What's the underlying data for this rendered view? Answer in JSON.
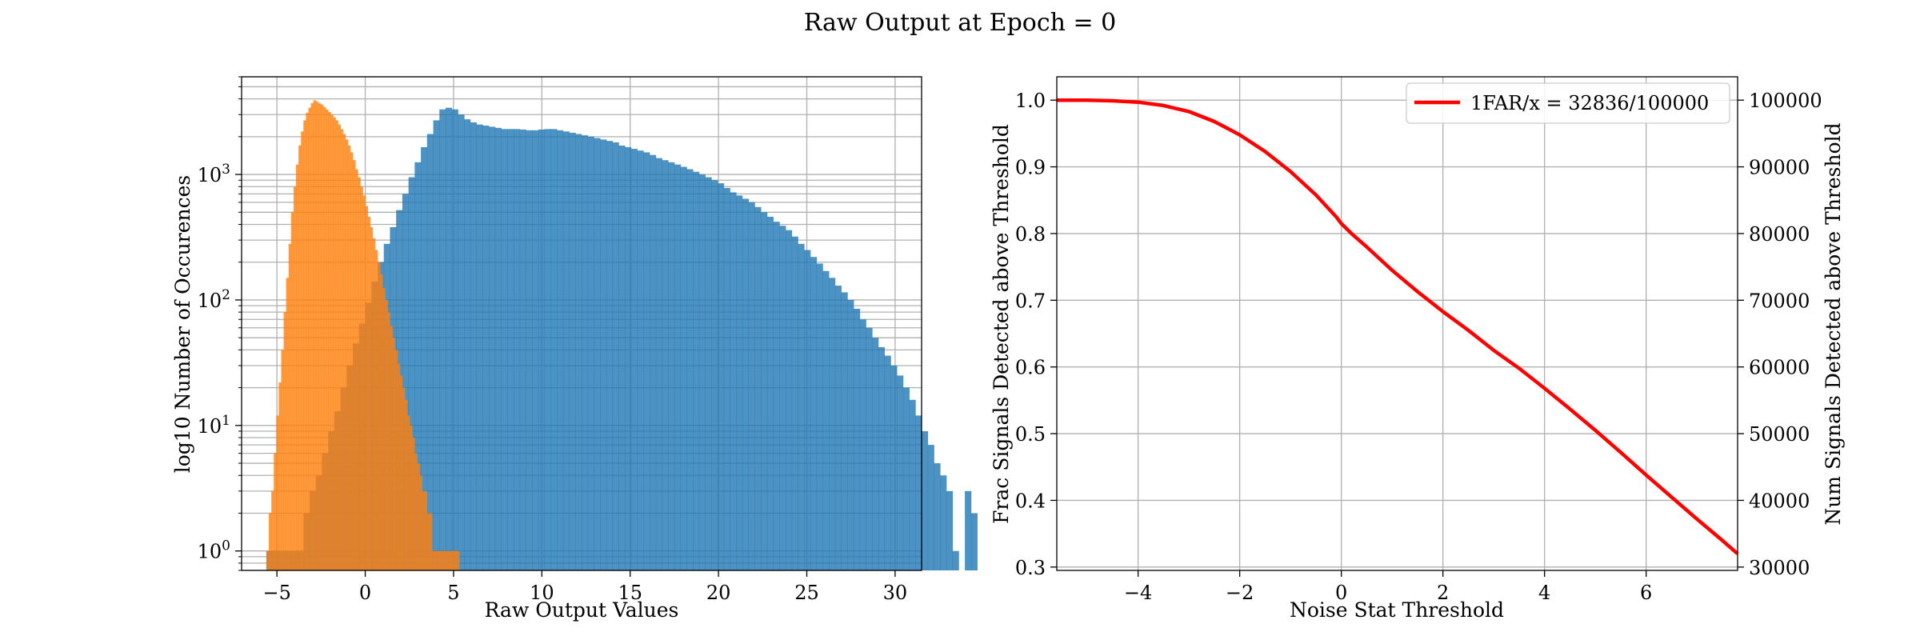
{
  "figure": {
    "title": "Raw Output at Epoch = 0"
  },
  "chart_data": [
    {
      "type": "bar",
      "subtype": "histogram",
      "yscale": "log",
      "xlabel": "Raw Output Values",
      "ylabel": "log10 Number of Occurences",
      "xlim": [
        -7,
        31.5
      ],
      "ylim": [
        0.7,
        6000
      ],
      "xticks": [
        -5,
        0,
        5,
        10,
        15,
        20,
        25,
        30
      ],
      "yticks": [
        {
          "value": 1,
          "base": "10",
          "exp": "0"
        },
        {
          "value": 10,
          "base": "10",
          "exp": "1"
        },
        {
          "value": 100,
          "base": "10",
          "exp": "2"
        },
        {
          "value": 1000,
          "base": "10",
          "exp": "3"
        }
      ],
      "grid": true,
      "colors": [
        "#1f77b4",
        "#ff7f0e"
      ],
      "series": [
        {
          "bins": {
            "start": -5.6,
            "width": 0.35
          },
          "values": [
            1,
            1,
            1,
            1,
            1,
            1,
            2,
            3,
            4,
            6,
            9,
            13,
            20,
            30,
            45,
            65,
            95,
            140,
            200,
            280,
            380,
            520,
            700,
            950,
            1250,
            1650,
            2100,
            2700,
            3300,
            3400,
            3300,
            3000,
            2750,
            2600,
            2500,
            2450,
            2400,
            2350,
            2300,
            2300,
            2300,
            2280,
            2250,
            2250,
            2280,
            2300,
            2300,
            2250,
            2200,
            2150,
            2100,
            2050,
            2000,
            1950,
            1900,
            1850,
            1800,
            1700,
            1650,
            1600,
            1550,
            1500,
            1430,
            1350,
            1300,
            1250,
            1200,
            1150,
            1100,
            1050,
            1000,
            950,
            900,
            850,
            780,
            720,
            680,
            640,
            600,
            550,
            500,
            460,
            420,
            390,
            360,
            320,
            280,
            250,
            220,
            195,
            170,
            150,
            130,
            115,
            100,
            85,
            70,
            60,
            50,
            42,
            36,
            30,
            25,
            20,
            16,
            12,
            9,
            7,
            5,
            4,
            3,
            1,
            0,
            3,
            2
          ],
          "label": ""
        },
        {
          "bins": {
            "start": -5.6,
            "width": 0.14
          },
          "values": [
            1,
            2,
            3,
            6,
            12,
            22,
            40,
            80,
            150,
            280,
            500,
            800,
            1200,
            1700,
            2200,
            2700,
            3100,
            3400,
            3700,
            3900,
            3800,
            3700,
            3600,
            3450,
            3300,
            3150,
            3000,
            2850,
            2700,
            2500,
            2300,
            2100,
            1900,
            1700,
            1500,
            1300,
            1100,
            950,
            800,
            680,
            560,
            460,
            380,
            310,
            250,
            200,
            160,
            125,
            100,
            80,
            62,
            50,
            40,
            31,
            25,
            20,
            16,
            12,
            10,
            8,
            6,
            5,
            4,
            3,
            3,
            2,
            2,
            1,
            1,
            1,
            1,
            1,
            1,
            1,
            1,
            1,
            1,
            1
          ],
          "label": ""
        }
      ]
    },
    {
      "type": "line",
      "xlabel": "Noise Stat Threshold",
      "ylabel": "Frac Signals Detected above Threshold",
      "y2label": "Num Signals Detected above Threshold",
      "xlim": [
        -5.6,
        7.8
      ],
      "ylim": [
        0.295,
        1.035
      ],
      "xticks": [
        -4,
        -2,
        0,
        2,
        4,
        6
      ],
      "xtick_labels": [
        "−4",
        "−2",
        "0",
        "2",
        "4",
        "6"
      ],
      "yticks": [
        0.3,
        0.4,
        0.5,
        0.6,
        0.7,
        0.8,
        0.9,
        1.0
      ],
      "ytick_labels": [
        "0.3",
        "0.4",
        "0.5",
        "0.6",
        "0.7",
        "0.8",
        "0.9",
        "1.0"
      ],
      "y2ticks": [
        30000,
        40000,
        50000,
        60000,
        70000,
        80000,
        90000,
        100000
      ],
      "y2tick_labels": [
        "30000",
        "40000",
        "50000",
        "60000",
        "70000",
        "80000",
        "90000",
        "100000"
      ],
      "y2lim": [
        29500,
        103500
      ],
      "grid": true,
      "legend": "top-right",
      "series": [
        {
          "name": "1FAR/x = 32836/100000",
          "color": "#ff0000",
          "x": [
            -5.6,
            -5.0,
            -4.5,
            -4.0,
            -3.5,
            -3.0,
            -2.5,
            -2.0,
            -1.5,
            -1.0,
            -0.5,
            -0.1,
            0.0,
            0.2,
            0.5,
            1.0,
            1.5,
            2.0,
            2.5,
            3.0,
            3.5,
            4.0,
            4.5,
            5.0,
            5.5,
            6.0,
            6.5,
            7.0,
            7.5,
            7.8
          ],
          "y": [
            1.0,
            1.0,
            0.999,
            0.997,
            0.992,
            0.983,
            0.968,
            0.948,
            0.923,
            0.893,
            0.858,
            0.825,
            0.815,
            0.8,
            0.78,
            0.745,
            0.713,
            0.683,
            0.655,
            0.625,
            0.598,
            0.568,
            0.537,
            0.505,
            0.472,
            0.438,
            0.405,
            0.372,
            0.34,
            0.32
          ]
        }
      ]
    }
  ]
}
